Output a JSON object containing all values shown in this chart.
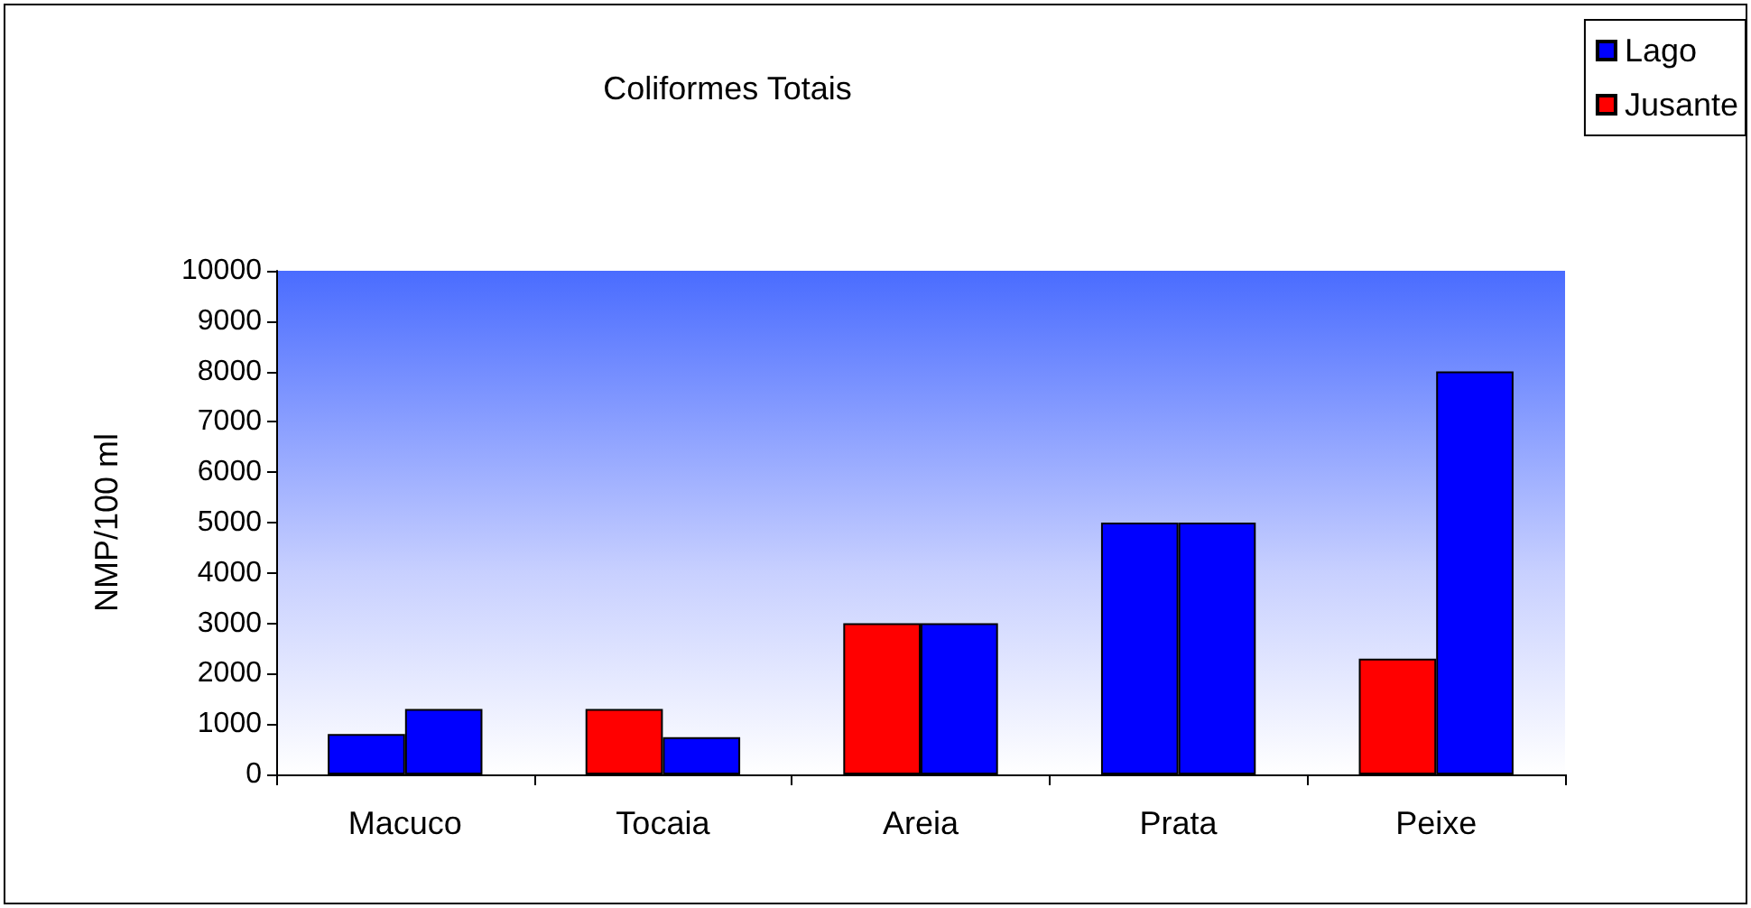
{
  "chart_data": {
    "type": "bar",
    "title": "Coliformes Totais",
    "ylabel": "NMP/100 ml",
    "categories": [
      "Macuco",
      "Tocaia",
      "Areia",
      "Prata",
      "Peixe"
    ],
    "series": [
      {
        "name": "Jusante",
        "color": "#ff0000",
        "colors": [
          "#0000ff",
          "#ff0000",
          "#ff0000",
          "#0000ff",
          "#ff0000"
        ],
        "values": [
          800,
          1300,
          3000,
          5000,
          2300
        ]
      },
      {
        "name": "Lago",
        "color": "#0000ff",
        "values": [
          1300,
          740,
          3000,
          5000,
          8000
        ]
      }
    ],
    "ylim": [
      0,
      10000
    ],
    "yticks": [
      0,
      1000,
      2000,
      3000,
      4000,
      5000,
      6000,
      7000,
      8000,
      9000,
      10000
    ],
    "grid": false,
    "legend": "top right"
  }
}
